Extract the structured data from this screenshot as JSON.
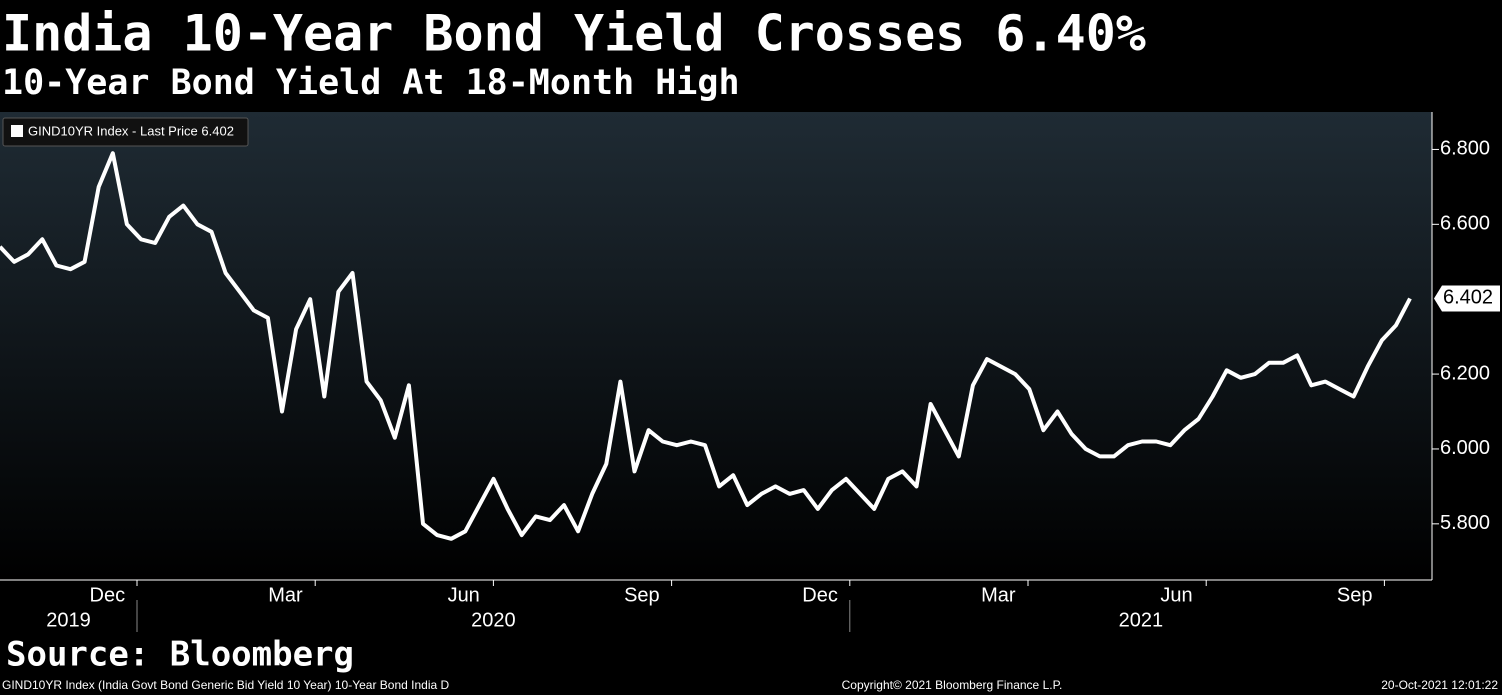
{
  "chart_data": {
    "type": "line",
    "title": "India 10-Year Bond Yield Crosses 6.40%",
    "subtitle": "10-Year Bond Yield At 18-Month High",
    "source": "Source: Bloomberg",
    "notes": {
      "left": "GIND10YR Index (India Govt Bond Generic Bid Yield 10 Year) 10-Year Bond India  D",
      "center": "Copyright© 2021 Bloomberg Finance L.P.",
      "right": "20-Oct-2021 12:01:22"
    },
    "x": [
      "2019-10",
      "2019-10",
      "2019-11",
      "2019-11",
      "2019-11",
      "2019-11",
      "2019-12",
      "2019-12",
      "2019-12",
      "2019-12",
      "2020-01",
      "2020-01",
      "2020-01",
      "2020-01",
      "2020-01",
      "2020-02",
      "2020-02",
      "2020-02",
      "2020-02",
      "2020-03",
      "2020-03",
      "2020-03",
      "2020-03",
      "2020-03",
      "2020-04",
      "2020-04",
      "2020-04",
      "2020-04",
      "2020-04",
      "2020-05",
      "2020-05",
      "2020-05",
      "2020-05",
      "2020-06",
      "2020-06",
      "2020-06",
      "2020-06",
      "2020-07",
      "2020-07",
      "2020-07",
      "2020-07",
      "2020-08",
      "2020-08",
      "2020-08",
      "2020-08",
      "2020-08",
      "2020-09",
      "2020-09",
      "2020-09",
      "2020-09",
      "2020-10",
      "2020-10",
      "2020-10",
      "2020-10",
      "2020-11",
      "2020-11",
      "2020-11",
      "2020-11",
      "2020-12",
      "2020-12",
      "2020-12",
      "2020-12",
      "2021-01",
      "2021-01",
      "2021-01",
      "2021-01",
      "2021-02",
      "2021-02",
      "2021-02",
      "2021-02",
      "2021-03",
      "2021-03",
      "2021-03",
      "2021-03",
      "2021-04",
      "2021-04",
      "2021-04",
      "2021-04",
      "2021-05",
      "2021-05",
      "2021-05",
      "2021-05",
      "2021-06",
      "2021-06",
      "2021-06",
      "2021-06",
      "2021-07",
      "2021-07",
      "2021-07",
      "2021-07",
      "2021-08",
      "2021-08",
      "2021-08",
      "2021-08",
      "2021-09",
      "2021-09",
      "2021-09",
      "2021-09",
      "2021-10",
      "2021-10",
      "2021-10"
    ],
    "series": [
      {
        "name": "GIND10YR Index - Last Price 6.402",
        "color": "#ffffff",
        "values": [
          6.54,
          6.5,
          6.52,
          6.56,
          6.49,
          6.48,
          6.5,
          6.7,
          6.79,
          6.6,
          6.56,
          6.55,
          6.62,
          6.65,
          6.6,
          6.58,
          6.47,
          6.42,
          6.37,
          6.35,
          6.1,
          6.32,
          6.4,
          6.14,
          6.42,
          6.47,
          6.18,
          6.13,
          6.03,
          6.17,
          5.8,
          5.77,
          5.76,
          5.78,
          5.85,
          5.92,
          5.84,
          5.77,
          5.82,
          5.81,
          5.85,
          5.78,
          5.88,
          5.96,
          6.18,
          5.94,
          6.05,
          6.02,
          6.01,
          6.02,
          6.01,
          5.9,
          5.93,
          5.85,
          5.88,
          5.9,
          5.88,
          5.89,
          5.84,
          5.89,
          5.92,
          5.88,
          5.84,
          5.92,
          5.94,
          5.9,
          6.12,
          6.05,
          5.98,
          6.17,
          6.24,
          6.22,
          6.2,
          6.16,
          6.05,
          6.1,
          6.04,
          6.0,
          5.98,
          5.98,
          6.01,
          6.02,
          6.02,
          6.01,
          6.05,
          6.08,
          6.14,
          6.21,
          6.19,
          6.2,
          6.23,
          6.23,
          6.25,
          6.17,
          6.18,
          6.16,
          6.14,
          6.22,
          6.29,
          6.33,
          6.402
        ]
      }
    ],
    "xticks": [
      {
        "value": "2019-12",
        "label": "Dec"
      },
      {
        "value": "2020-03",
        "label": "Mar"
      },
      {
        "value": "2020-06",
        "label": "Jun"
      },
      {
        "value": "2020-09",
        "label": "Sep"
      },
      {
        "value": "2020-12",
        "label": "Dec"
      },
      {
        "value": "2021-03",
        "label": "Mar"
      },
      {
        "value": "2021-06",
        "label": "Jun"
      },
      {
        "value": "2021-09",
        "label": "Sep"
      }
    ],
    "years": [
      "2019",
      "2020",
      "2021"
    ],
    "ylim": [
      5.65,
      6.9
    ],
    "yticks": [
      {
        "value": 5.8,
        "label": "5.800"
      },
      {
        "value": 6.0,
        "label": "6.000"
      },
      {
        "value": 6.2,
        "label": "6.200"
      },
      {
        "value": 6.6,
        "label": "6.600"
      },
      {
        "value": 6.8,
        "label": "6.800"
      }
    ],
    "legend": "top-left"
  }
}
